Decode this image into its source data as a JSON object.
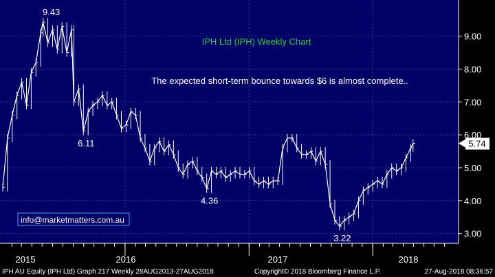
{
  "colors": {
    "plot_bg": "#000066",
    "price": "#ffffff",
    "grid": "#3a3a8a",
    "title": "#33cc33",
    "annotation": "#ffffff",
    "badge_bg": "#ffffff",
    "badge_fg": "#000000",
    "email_border": "#4aa3ff"
  },
  "chart_data": {
    "type": "line",
    "title": "IPH Ltd (IPH) Weekly Chart",
    "subtitle": "The expected short-term bounce towards $6 is almost complete..",
    "ylim": [
      2.7,
      10.1
    ],
    "yticks": [
      "3.00",
      "4.00",
      "5.00",
      "6.00",
      "7.00",
      "8.00",
      "9.00"
    ],
    "xlabels": [
      "2015",
      "2016",
      "2017",
      "2018"
    ],
    "x_start": "2015-01-05",
    "last_value_label": "5.74",
    "series": [
      {
        "points": [
          [
            "2015-01-05",
            4.4
          ],
          [
            "2015-01-19",
            5.9
          ],
          [
            "2015-02-02",
            6.6
          ],
          [
            "2015-02-16",
            7.2
          ],
          [
            "2015-03-02",
            7.6
          ],
          [
            "2015-03-16",
            6.9
          ],
          [
            "2015-03-30",
            7.9
          ],
          [
            "2015-04-13",
            8.2
          ],
          [
            "2015-04-27",
            9.1
          ],
          [
            "2015-05-04",
            9.43
          ],
          [
            "2015-05-18",
            8.8
          ],
          [
            "2015-06-01",
            9.2
          ],
          [
            "2015-06-15",
            8.6
          ],
          [
            "2015-06-29",
            9.3
          ],
          [
            "2015-07-13",
            8.5
          ],
          [
            "2015-07-27",
            9.2
          ],
          [
            "2015-08-03",
            7.0
          ],
          [
            "2015-08-17",
            7.4
          ],
          [
            "2015-08-31",
            6.11
          ],
          [
            "2015-09-14",
            6.7
          ],
          [
            "2015-09-28",
            6.9
          ],
          [
            "2015-10-12",
            7.0
          ],
          [
            "2015-10-26",
            7.2
          ],
          [
            "2015-11-09",
            6.9
          ],
          [
            "2015-11-23",
            7.0
          ],
          [
            "2015-12-07",
            6.6
          ],
          [
            "2015-12-21",
            6.2
          ],
          [
            "2016-01-04",
            6.3
          ],
          [
            "2016-01-18",
            6.7
          ],
          [
            "2016-02-01",
            6.6
          ],
          [
            "2016-02-15",
            5.9
          ],
          [
            "2016-02-29",
            5.6
          ],
          [
            "2016-03-14",
            5.2
          ],
          [
            "2016-03-28",
            5.6
          ],
          [
            "2016-04-11",
            5.8
          ],
          [
            "2016-04-25",
            5.5
          ],
          [
            "2016-05-09",
            5.7
          ],
          [
            "2016-05-23",
            5.4
          ],
          [
            "2016-06-06",
            5.0
          ],
          [
            "2016-06-20",
            4.8
          ],
          [
            "2016-07-04",
            5.1
          ],
          [
            "2016-07-18",
            5.2
          ],
          [
            "2016-08-01",
            4.9
          ],
          [
            "2016-08-15",
            4.7
          ],
          [
            "2016-08-29",
            4.36
          ],
          [
            "2016-09-12",
            4.9
          ],
          [
            "2016-09-26",
            4.8
          ],
          [
            "2016-10-10",
            4.9
          ],
          [
            "2016-10-24",
            4.7
          ],
          [
            "2016-11-07",
            4.8
          ],
          [
            "2016-11-21",
            4.9
          ],
          [
            "2016-12-05",
            4.8
          ],
          [
            "2016-12-19",
            4.8
          ],
          [
            "2017-01-02",
            4.9
          ],
          [
            "2017-01-16",
            4.6
          ],
          [
            "2017-01-30",
            4.5
          ],
          [
            "2017-02-13",
            4.6
          ],
          [
            "2017-02-27",
            4.5
          ],
          [
            "2017-03-13",
            4.6
          ],
          [
            "2017-03-27",
            4.6
          ],
          [
            "2017-04-10",
            5.6
          ],
          [
            "2017-04-24",
            5.9
          ],
          [
            "2017-05-08",
            5.9
          ],
          [
            "2017-05-22",
            5.6
          ],
          [
            "2017-06-05",
            5.4
          ],
          [
            "2017-06-19",
            5.4
          ],
          [
            "2017-07-03",
            5.5
          ],
          [
            "2017-07-17",
            5.2
          ],
          [
            "2017-07-31",
            5.5
          ],
          [
            "2017-08-14",
            5.1
          ],
          [
            "2017-08-28",
            3.9
          ],
          [
            "2017-09-11",
            3.4
          ],
          [
            "2017-09-25",
            3.22
          ],
          [
            "2017-10-09",
            3.4
          ],
          [
            "2017-10-23",
            3.5
          ],
          [
            "2017-11-06",
            3.6
          ],
          [
            "2017-11-20",
            4.0
          ],
          [
            "2017-12-04",
            4.3
          ],
          [
            "2017-12-18",
            4.4
          ],
          [
            "2018-01-01",
            4.5
          ],
          [
            "2018-01-15",
            4.6
          ],
          [
            "2018-01-29",
            4.5
          ],
          [
            "2018-02-12",
            4.8
          ],
          [
            "2018-02-26",
            5.0
          ],
          [
            "2018-03-12",
            4.9
          ],
          [
            "2018-03-26",
            5.0
          ],
          [
            "2018-04-09",
            5.3
          ],
          [
            "2018-04-23",
            5.6
          ],
          [
            "2018-04-30",
            5.74
          ]
        ]
      }
    ],
    "annotations": [
      {
        "text": "9.43",
        "x": "2015-05-04",
        "y": 9.43
      },
      {
        "text": "6.11",
        "x": "2015-08-31",
        "y": 6.11
      },
      {
        "text": "4.36",
        "x": "2016-08-29",
        "y": 4.36
      },
      {
        "text": "3.22",
        "x": "2017-09-25",
        "y": 3.22
      }
    ]
  },
  "email": "info@marketmatters.com.au",
  "footer": {
    "left": "IPH AU Equity (IPH Ltd) Graph 217  Weekly 28AUG2013-27AUG2018",
    "middle": "Copyright© 2018 Bloomberg Finance L.P.",
    "right": "27-Aug-2018 08:36:57"
  }
}
